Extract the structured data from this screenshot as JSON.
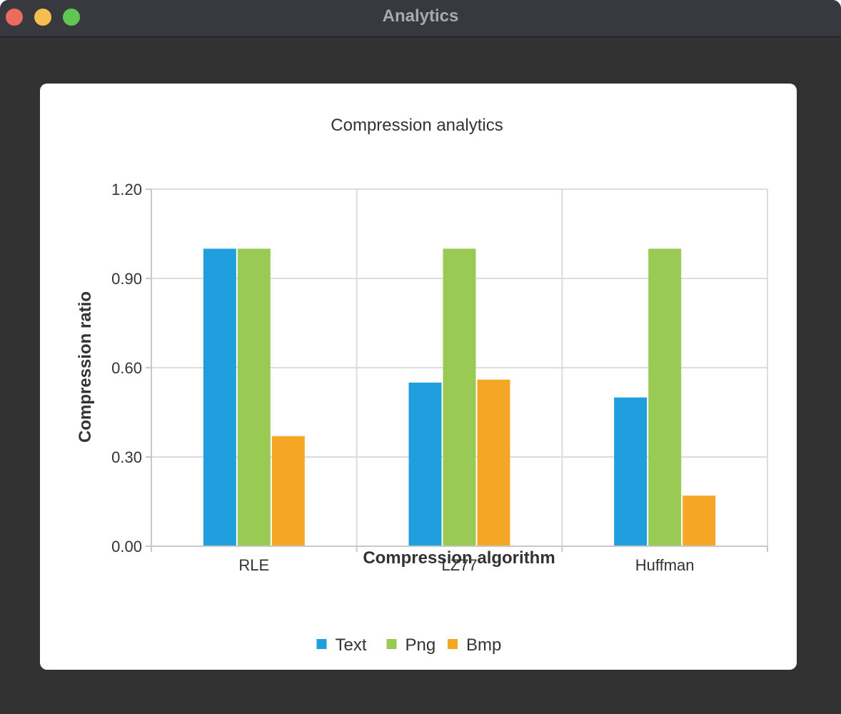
{
  "window": {
    "title": "Analytics"
  },
  "colors": {
    "titlebar_bg": "#38383f",
    "window_bg": "#323232",
    "card_bg": "#ffffff",
    "grid": "#dcdcdc",
    "close": "#ec6a5e",
    "minimize": "#f4bf4f",
    "zoom": "#61c554"
  },
  "chart_data": {
    "type": "bar",
    "title": "Compression analytics",
    "xlabel": "Compression algorithm",
    "ylabel": "Compression ratio",
    "categories": [
      "RLE",
      "LZ77",
      "Huffman"
    ],
    "series": [
      {
        "name": "Text",
        "color": "#209fdf",
        "values": [
          1.0,
          0.55,
          0.5
        ]
      },
      {
        "name": "Png",
        "color": "#99ca53",
        "values": [
          1.0,
          1.0,
          1.0
        ]
      },
      {
        "name": "Bmp",
        "color": "#f6a625",
        "values": [
          0.37,
          0.56,
          0.17
        ]
      }
    ],
    "ylim": [
      0,
      1.2
    ],
    "yticks": [
      "0.00",
      "0.30",
      "0.60",
      "0.90",
      "1.20"
    ],
    "grid": true,
    "legend_position": "bottom"
  }
}
